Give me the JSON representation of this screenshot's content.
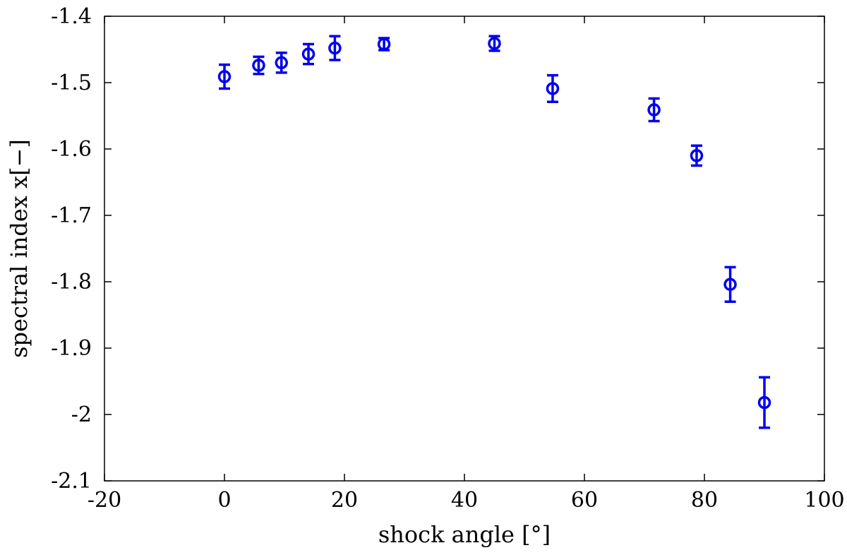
{
  "chart_data": {
    "type": "scatter",
    "title": "",
    "xlabel": "shock angle [°]",
    "ylabel": "spectral index x[−]",
    "xlim": [
      -20,
      100
    ],
    "ylim": [
      -2.1,
      -1.4
    ],
    "xticks": [
      -20,
      0,
      20,
      40,
      60,
      80,
      100
    ],
    "yticks": [
      -2.1,
      -2,
      -1.9,
      -1.8,
      -1.7,
      -1.6,
      -1.5,
      -1.4
    ],
    "xtick_labels": [
      "-20",
      "0",
      "20",
      "40",
      "60",
      "80",
      "100"
    ],
    "ytick_labels": [
      "-2.1",
      "-2",
      "-1.9",
      "-1.8",
      "-1.7",
      "-1.6",
      "-1.5",
      "-1.4"
    ],
    "grid": false,
    "legend": "none",
    "marker": "open-circle",
    "color": "#0000ee",
    "series": [
      {
        "x": [
          0,
          5.7,
          9.5,
          14,
          18.4,
          26.6,
          45,
          54.7,
          71.6,
          78.7,
          84.3,
          90
        ],
        "y": [
          -1.491,
          -1.474,
          -1.47,
          -1.457,
          -1.448,
          -1.442,
          -1.441,
          -1.509,
          -1.541,
          -1.61,
          -1.804,
          -1.982
        ],
        "yerr": [
          0.018,
          0.013,
          0.015,
          0.015,
          0.018,
          0.009,
          0.011,
          0.02,
          0.017,
          0.015,
          0.026,
          0.038
        ]
      }
    ]
  }
}
